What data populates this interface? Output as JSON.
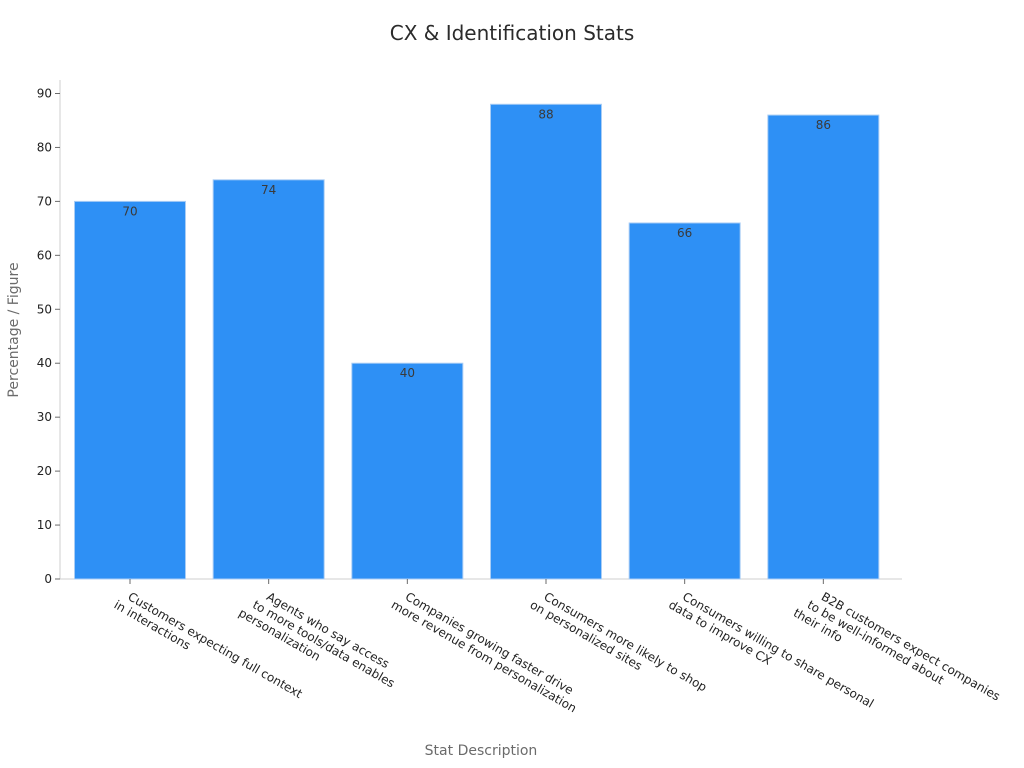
{
  "chart_data": {
    "type": "bar",
    "title": "CX & Identification Stats",
    "xlabel": "Stat Description",
    "ylabel": "Percentage / Figure",
    "categories": [
      [
        "Customers expecting full context",
        "in interactions"
      ],
      [
        "Agents who say access",
        "to more tools/data enables",
        "personalization"
      ],
      [
        "Companies growing faster drive",
        "more revenue from personalization"
      ],
      [
        "Consumers more likely to shop",
        "on personalized sites"
      ],
      [
        "Consumers willing to share personal",
        "data to improve CX"
      ],
      [
        "B2B customers expect companies",
        "to be well-informed about",
        "their info"
      ]
    ],
    "values": [
      70,
      74,
      40,
      88,
      66,
      86
    ],
    "ylim": [
      0,
      90
    ],
    "yticks": [
      0,
      10,
      20,
      30,
      40,
      50,
      60,
      70,
      80,
      90
    ],
    "grid": false,
    "bar_color": "#2e90f5"
  }
}
